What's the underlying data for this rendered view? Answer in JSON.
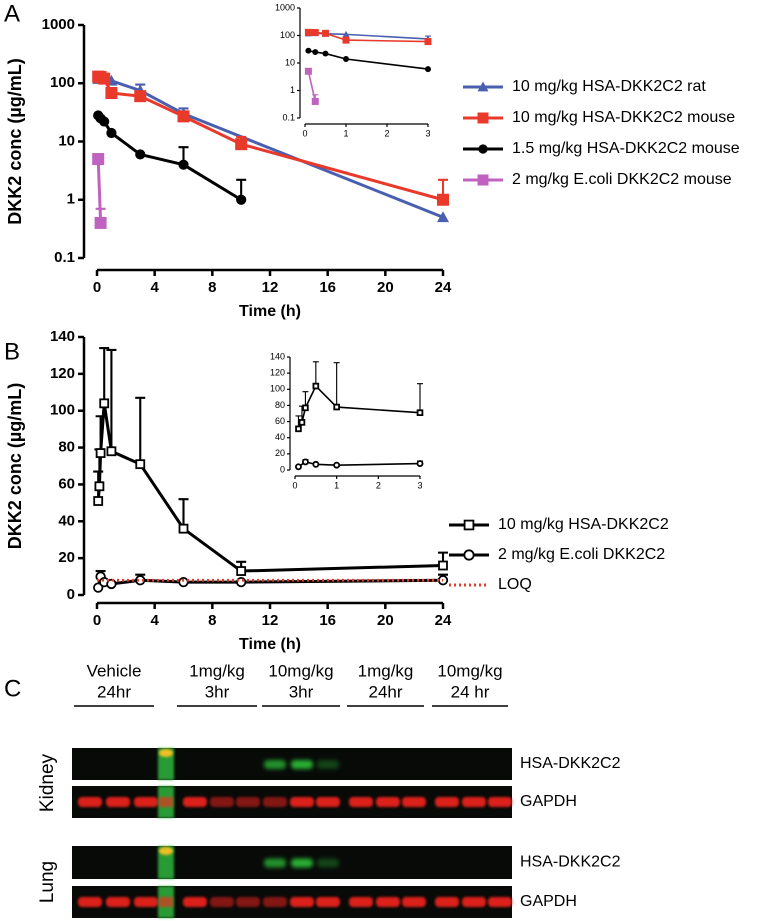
{
  "chart_data": [
    {
      "type": "line",
      "panel_label": "A",
      "y_label": "DKK2 conc (µg/mL)",
      "x_label": "Time (h)",
      "log_y": true,
      "grid": false,
      "legend_position": "right",
      "xlim": [
        0,
        24
      ],
      "xticks": [
        0,
        4,
        8,
        12,
        16,
        20,
        24
      ],
      "ylim": [
        0.1,
        1000
      ],
      "yticks": [
        0.1,
        1,
        10,
        100,
        1000
      ],
      "series": [
        {
          "name": "10 mg/kg HSA-DKK2C2 rat",
          "color": "#4a5fb0",
          "marker": "triangle",
          "x": [
            0.083,
            0.25,
            0.5,
            1,
            3,
            6,
            24
          ],
          "values": [
            118,
            120,
            115,
            110,
            75,
            30,
            0.5
          ],
          "errors": [
            null,
            null,
            null,
            null,
            20,
            7,
            null
          ]
        },
        {
          "name": "10 mg/kg HSA-DKK2C2 mouse",
          "color": "#e8392b",
          "marker": "square",
          "x": [
            0.083,
            0.25,
            0.5,
            1,
            3,
            6,
            10,
            24
          ],
          "values": [
            130,
            128,
            120,
            68,
            60,
            27,
            9,
            1
          ],
          "errors": [
            null,
            null,
            null,
            null,
            null,
            null,
            3,
            1.2
          ]
        },
        {
          "name": "1.5 mg/kg HSA-DKK2C2 mouse",
          "color": "#000000",
          "marker": "circle",
          "x": [
            0.083,
            0.25,
            0.5,
            1,
            3,
            6,
            10
          ],
          "values": [
            28,
            25,
            22,
            14,
            6,
            4,
            1
          ],
          "errors": [
            null,
            null,
            null,
            null,
            null,
            4,
            1.2
          ]
        },
        {
          "name": "2 mg/kg E.coli DKK2C2 mouse",
          "color": "#c062c0",
          "marker": "square",
          "x": [
            0.083,
            0.25
          ],
          "values": [
            5,
            0.4
          ],
          "errors": [
            null,
            0.3
          ]
        }
      ],
      "inset": {
        "xlim": [
          0,
          3
        ],
        "xticks": [
          0,
          1,
          2,
          3
        ],
        "ylim": [
          0.1,
          1000
        ],
        "yticks": [
          0.1,
          1,
          10,
          100,
          1000
        ]
      }
    },
    {
      "type": "line",
      "panel_label": "B",
      "y_label": "DKK2 conc (µg/mL)",
      "x_label": "Time (h)",
      "log_y": false,
      "grid": false,
      "legend_position": "right",
      "xlim": [
        0,
        24
      ],
      "xticks": [
        0,
        4,
        8,
        12,
        16,
        20,
        24
      ],
      "ylim": [
        0,
        140
      ],
      "yticks": [
        0,
        20,
        40,
        60,
        80,
        100,
        120,
        140
      ],
      "series": [
        {
          "name": "10 mg/kg HSA-DKK2C2",
          "color": "#000000",
          "marker": "square-open",
          "x": [
            0.083,
            0.167,
            0.25,
            0.5,
            1,
            3,
            6,
            10,
            24
          ],
          "values": [
            51,
            59,
            77,
            104,
            78,
            71,
            36,
            13,
            16
          ],
          "errors": [
            16,
            20,
            20,
            30,
            55,
            36,
            16,
            5,
            7
          ]
        },
        {
          "name": "2 mg/kg E.coli DKK2C2",
          "color": "#000000",
          "marker": "circle-open",
          "x": [
            0.083,
            0.25,
            0.5,
            1,
            3,
            6,
            10,
            24
          ],
          "values": [
            4,
            10,
            7,
            6,
            8,
            7,
            7,
            8
          ],
          "errors": [
            null,
            3,
            null,
            null,
            3,
            null,
            null,
            3
          ]
        },
        {
          "name": "LOQ",
          "color": "#e8392b",
          "marker": "none",
          "line_style": "dotted",
          "x": [
            0,
            24
          ],
          "values": [
            8,
            8
          ]
        }
      ],
      "inset": {
        "xlim": [
          0,
          3
        ],
        "xticks": [
          0,
          1,
          2,
          3
        ],
        "ylim": [
          0,
          140
        ],
        "yticks": [
          0,
          20,
          40,
          60,
          80,
          100,
          120,
          140
        ]
      }
    }
  ],
  "blot": {
    "panel_label": "C",
    "groups": [
      {
        "dose": "Vehicle",
        "time": "24hr"
      },
      {
        "dose": "1mg/kg",
        "time": "3hr"
      },
      {
        "dose": "10mg/kg",
        "time": "3hr"
      },
      {
        "dose": "1mg/kg",
        "time": "24hr"
      },
      {
        "dose": "10mg/kg",
        "time": "24 hr"
      }
    ],
    "tissues": [
      {
        "name": "Kidney",
        "bands": [
          "HSA-DKK2C2",
          "GAPDH"
        ]
      },
      {
        "name": "Lung",
        "bands": [
          "HSA-DKK2C2",
          "GAPDH"
        ]
      }
    ]
  }
}
